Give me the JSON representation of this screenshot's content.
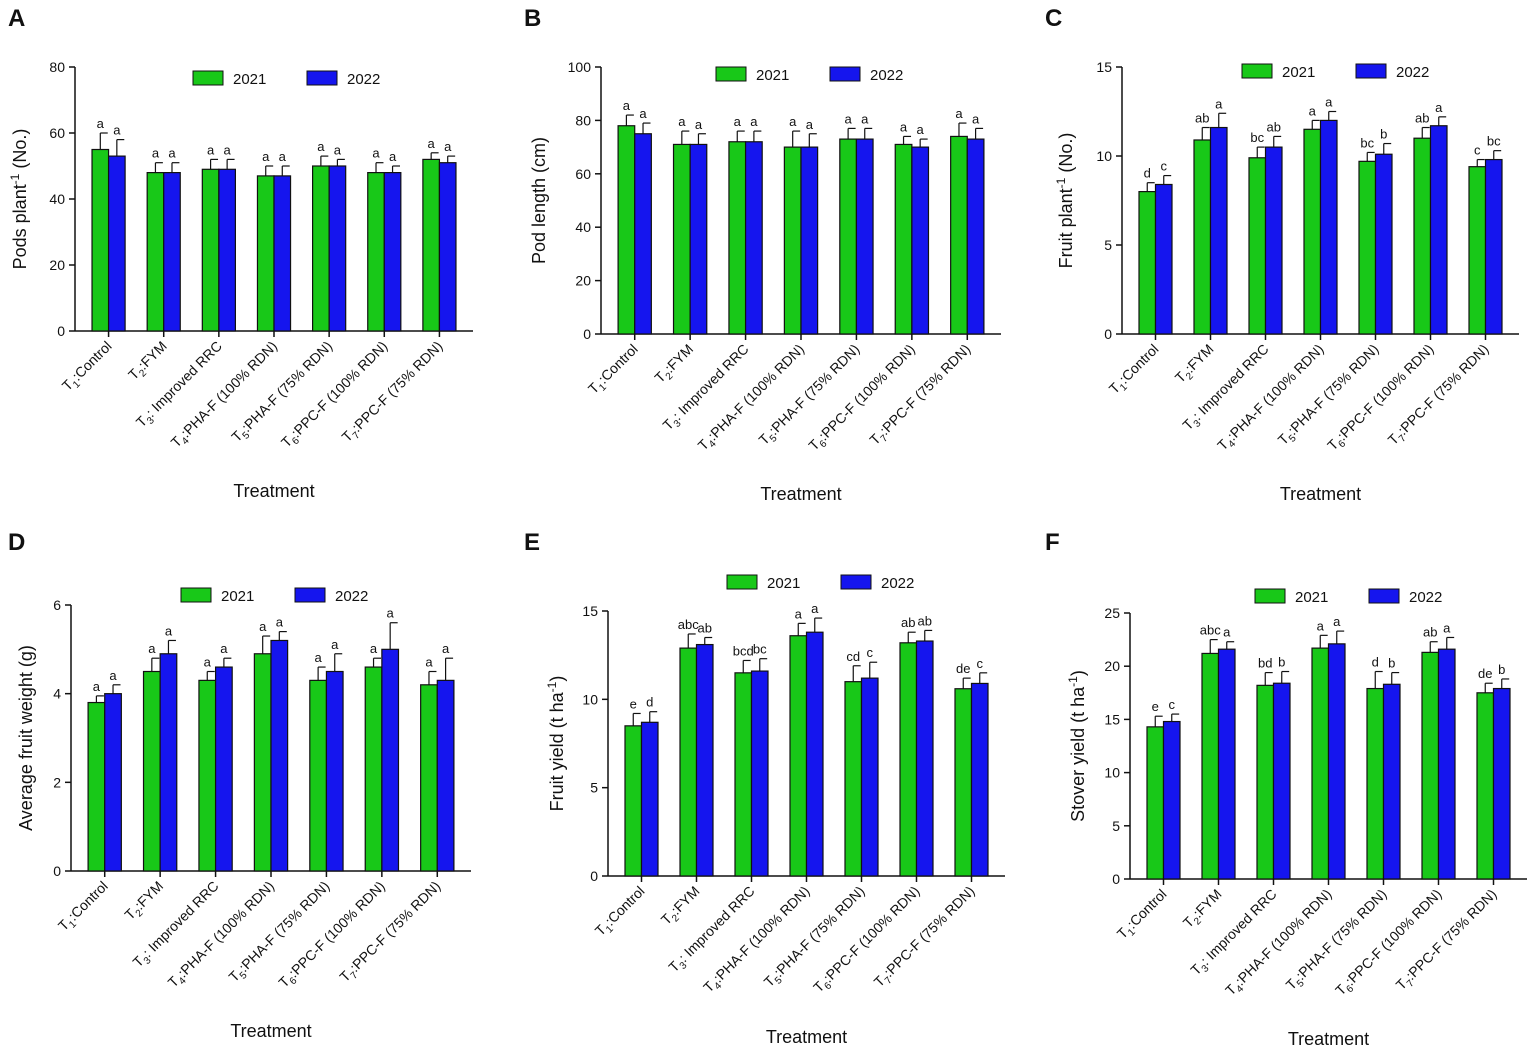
{
  "figure": {
    "colors": {
      "series_2021": "#18c818",
      "series_2022": "#1515ee",
      "axis": "#111111"
    },
    "legend": [
      "2021",
      "2022"
    ]
  },
  "chart_data": [
    {
      "type": "bar",
      "panel": "A",
      "ylabel_main": "Pods plant",
      "ylabel_sup": "-1",
      "ylabel_suffix": " (No.)",
      "xlabel": "Treatment",
      "ylim": [
        0,
        80
      ],
      "yticks": [
        0,
        20,
        40,
        60,
        80
      ],
      "categories": [
        {
          "t": "T",
          "s": "1",
          "r": ":Control"
        },
        {
          "t": "T",
          "s": "2",
          "r": ":FYM"
        },
        {
          "t": "T",
          "s": "3",
          "r": ": Improved RRC"
        },
        {
          "t": "T",
          "s": "4",
          "r": ":PHA-F (100% RDN)"
        },
        {
          "t": "T",
          "s": "5",
          "r": ":PHA-F (75% RDN)"
        },
        {
          "t": "T",
          "s": "6",
          "r": ":PPC-F (100% RDN)"
        },
        {
          "t": "T",
          "s": "7",
          "r": ":PPC-F (75% RDN)"
        }
      ],
      "series": [
        {
          "name": "2021",
          "values": [
            55,
            48,
            49,
            47,
            50,
            48,
            52
          ],
          "errors": [
            5,
            3,
            3,
            3,
            3,
            3,
            2
          ],
          "letters": [
            "a",
            "a",
            "a",
            "a",
            "a",
            "a",
            "a"
          ]
        },
        {
          "name": "2022",
          "values": [
            53,
            48,
            49,
            47,
            50,
            48,
            51
          ],
          "errors": [
            5,
            3,
            3,
            3,
            2,
            2,
            2
          ],
          "letters": [
            "a",
            "a",
            "a",
            "a",
            "a",
            "a",
            "a"
          ]
        }
      ]
    },
    {
      "type": "bar",
      "panel": "B",
      "ylabel_main": "Pod length (cm)",
      "ylabel_sup": "",
      "ylabel_suffix": "",
      "xlabel": "Treatment",
      "ylim": [
        0,
        100
      ],
      "yticks": [
        0,
        20,
        40,
        60,
        80,
        100
      ],
      "categories": [
        {
          "t": "T",
          "s": "1",
          "r": ":Control"
        },
        {
          "t": "T",
          "s": "2",
          "r": ":FYM"
        },
        {
          "t": "T",
          "s": "3",
          "r": ": Improved RRC"
        },
        {
          "t": "T",
          "s": "4",
          "r": ":PHA-F (100% RDN)"
        },
        {
          "t": "T",
          "s": "5",
          "r": ":PHA-F (75% RDN)"
        },
        {
          "t": "T",
          "s": "6",
          "r": ":PPC-F (100% RDN)"
        },
        {
          "t": "T",
          "s": "7",
          "r": ":PPC-F (75% RDN)"
        }
      ],
      "series": [
        {
          "name": "2021",
          "values": [
            78,
            71,
            72,
            70,
            73,
            71,
            74
          ],
          "errors": [
            4,
            5,
            4,
            6,
            4,
            3,
            5
          ],
          "letters": [
            "a",
            "a",
            "a",
            "a",
            "a",
            "a",
            "a"
          ]
        },
        {
          "name": "2022",
          "values": [
            75,
            71,
            72,
            70,
            73,
            70,
            73
          ],
          "errors": [
            4,
            4,
            4,
            5,
            4,
            3,
            4
          ],
          "letters": [
            "a",
            "a",
            "a",
            "a",
            "a",
            "a",
            "a"
          ]
        }
      ]
    },
    {
      "type": "bar",
      "panel": "C",
      "ylabel_main": "Fruit plant",
      "ylabel_sup": "-1",
      "ylabel_suffix": " (No.)",
      "xlabel": "Treatment",
      "ylim": [
        0,
        15
      ],
      "yticks": [
        0,
        5,
        10,
        15
      ],
      "categories": [
        {
          "t": "T",
          "s": "1",
          "r": ":Control"
        },
        {
          "t": "T",
          "s": "2",
          "r": ":FYM"
        },
        {
          "t": "T",
          "s": "3",
          "r": ": Improved RRC"
        },
        {
          "t": "T",
          "s": "4",
          "r": ":PHA-F (100% RDN)"
        },
        {
          "t": "T",
          "s": "5",
          "r": ":PHA-F (75% RDN)"
        },
        {
          "t": "T",
          "s": "6",
          "r": ":PPC-F (100% RDN)"
        },
        {
          "t": "T",
          "s": "7",
          "r": ":PPC-F (75% RDN)"
        }
      ],
      "series": [
        {
          "name": "2021",
          "values": [
            8.0,
            10.9,
            9.9,
            11.5,
            9.7,
            11.0,
            9.4
          ],
          "errors": [
            0.5,
            0.7,
            0.6,
            0.5,
            0.5,
            0.6,
            0.4
          ],
          "letters": [
            "d",
            "ab",
            "bc",
            "a",
            "bc",
            "ab",
            "c"
          ]
        },
        {
          "name": "2022",
          "values": [
            8.4,
            11.6,
            10.5,
            12.0,
            10.1,
            11.7,
            9.8
          ],
          "errors": [
            0.5,
            0.8,
            0.6,
            0.5,
            0.6,
            0.5,
            0.5
          ],
          "letters": [
            "c",
            "a",
            "ab",
            "a",
            "b",
            "a",
            "bc"
          ]
        }
      ]
    },
    {
      "type": "bar",
      "panel": "D",
      "ylabel_main": "Average fruit weight (g)",
      "ylabel_sup": "",
      "ylabel_suffix": "",
      "xlabel": "Treatment",
      "ylim": [
        0,
        6
      ],
      "yticks": [
        0,
        2,
        4,
        6
      ],
      "categories": [
        {
          "t": "T",
          "s": "1",
          "r": ":Control"
        },
        {
          "t": "T",
          "s": "2",
          "r": ":FYM"
        },
        {
          "t": "T",
          "s": "3",
          "r": ": Improved RRC"
        },
        {
          "t": "T",
          "s": "4",
          "r": ":PHA-F (100% RDN)"
        },
        {
          "t": "T",
          "s": "5",
          "r": ":PHA-F (75% RDN)"
        },
        {
          "t": "T",
          "s": "6",
          "r": ":PPC-F (100% RDN)"
        },
        {
          "t": "T",
          "s": "7",
          "r": ":PPC-F (75% RDN)"
        }
      ],
      "series": [
        {
          "name": "2021",
          "values": [
            3.8,
            4.5,
            4.3,
            4.9,
            4.3,
            4.6,
            4.2
          ],
          "errors": [
            0.15,
            0.3,
            0.2,
            0.4,
            0.3,
            0.2,
            0.3
          ],
          "letters": [
            "a",
            "a",
            "a",
            "a",
            "a",
            "a",
            "a"
          ]
        },
        {
          "name": "2022",
          "values": [
            4.0,
            4.9,
            4.6,
            5.2,
            4.5,
            5.0,
            4.3
          ],
          "errors": [
            0.2,
            0.3,
            0.2,
            0.2,
            0.4,
            0.6,
            0.5
          ],
          "letters": [
            "a",
            "a",
            "a",
            "a",
            "a",
            "a",
            "a"
          ]
        }
      ]
    },
    {
      "type": "bar",
      "panel": "E",
      "ylabel_main": "Fruit yield (t ha",
      "ylabel_sup": "-1",
      "ylabel_suffix": ")",
      "xlabel": "Treatment",
      "ylim": [
        0,
        15
      ],
      "yticks": [
        0,
        5,
        10,
        15
      ],
      "categories": [
        {
          "t": "T",
          "s": "1",
          "r": ":Control"
        },
        {
          "t": "T",
          "s": "2",
          "r": ":FYM"
        },
        {
          "t": "T",
          "s": "3",
          "r": ": Improved RRC"
        },
        {
          "t": "T",
          "s": "4",
          "r": ":PHA-F (100% RDN)"
        },
        {
          "t": "T",
          "s": "5",
          "r": ":PHA-F (75% RDN)"
        },
        {
          "t": "T",
          "s": "6",
          "r": ":PPC-F (100% RDN)"
        },
        {
          "t": "T",
          "s": "7",
          "r": ":PPC-F (75% RDN)"
        }
      ],
      "series": [
        {
          "name": "2021",
          "values": [
            8.5,
            12.9,
            11.5,
            13.6,
            11.0,
            13.2,
            10.6
          ],
          "errors": [
            0.7,
            0.8,
            0.7,
            0.7,
            0.9,
            0.6,
            0.6
          ],
          "letters": [
            "e",
            "abc",
            "bcd",
            "a",
            "cd",
            "ab",
            "de"
          ]
        },
        {
          "name": "2022",
          "values": [
            8.7,
            13.1,
            11.6,
            13.8,
            11.2,
            13.3,
            10.9
          ],
          "errors": [
            0.6,
            0.4,
            0.7,
            0.8,
            0.9,
            0.6,
            0.6
          ],
          "letters": [
            "d",
            "ab",
            "bc",
            "a",
            "c",
            "ab",
            "c"
          ]
        }
      ]
    },
    {
      "type": "bar",
      "panel": "F",
      "ylabel_main": "Stover yield (t ha",
      "ylabel_sup": "-1",
      "ylabel_suffix": ")",
      "xlabel": "Treatment",
      "ylim": [
        0,
        25
      ],
      "yticks": [
        0,
        5,
        10,
        15,
        20,
        25
      ],
      "categories": [
        {
          "t": "T",
          "s": "1",
          "r": ":Control"
        },
        {
          "t": "T",
          "s": "2",
          "r": ":FYM"
        },
        {
          "t": "T",
          "s": "3",
          "r": ": Improved RRC"
        },
        {
          "t": "T",
          "s": "4",
          "r": ":PHA-F (100% RDN)"
        },
        {
          "t": "T",
          "s": "5",
          "r": ":PHA-F (75% RDN)"
        },
        {
          "t": "T",
          "s": "6",
          "r": ":PPC-F (100% RDN)"
        },
        {
          "t": "T",
          "s": "7",
          "r": ":PPC-F (75% RDN)"
        }
      ],
      "series": [
        {
          "name": "2021",
          "values": [
            14.3,
            21.2,
            18.2,
            21.7,
            17.9,
            21.3,
            17.5
          ],
          "errors": [
            1.0,
            1.3,
            1.2,
            1.2,
            1.6,
            1.0,
            0.9
          ],
          "letters": [
            "e",
            "abc",
            "bd",
            "a",
            "d",
            "ab",
            "de"
          ]
        },
        {
          "name": "2022",
          "values": [
            14.8,
            21.6,
            18.4,
            22.1,
            18.3,
            21.6,
            17.9
          ],
          "errors": [
            0.7,
            0.7,
            1.1,
            1.2,
            1.1,
            1.1,
            0.9
          ],
          "letters": [
            "c",
            "a",
            "b",
            "a",
            "b",
            "a",
            "b"
          ]
        }
      ]
    }
  ]
}
